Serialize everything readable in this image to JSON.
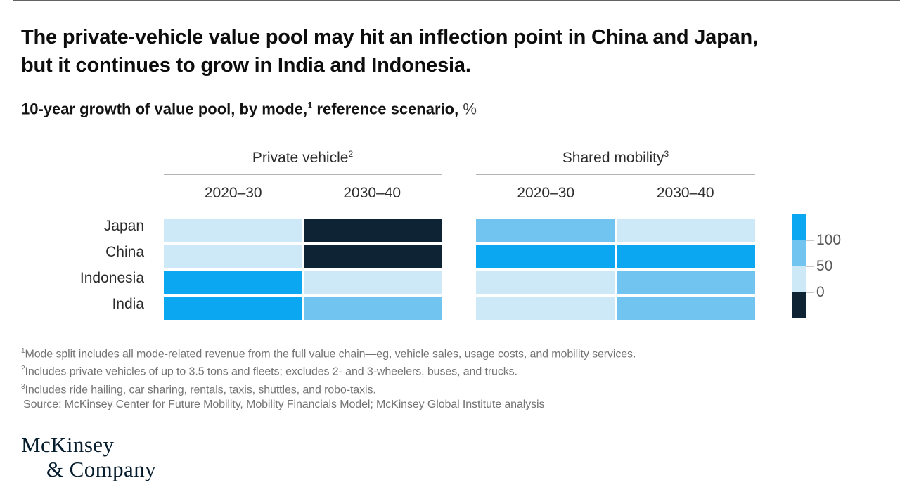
{
  "header": {
    "title_line1": "The private-vehicle value pool may hit an inflection point in China and Japan,",
    "title_line2": "but it continues to grow in India and Indonesia.",
    "subtitle_prefix": "10-year growth of value pool, by mode,",
    "subtitle_sup": "1",
    "subtitle_suffix": " reference scenario, ",
    "subtitle_unit": "%"
  },
  "chart_data": {
    "type": "heatmap",
    "title": "10-year growth of value pool, by mode, reference scenario, %",
    "rows": [
      "Japan",
      "China",
      "Indonesia",
      "India"
    ],
    "groups": [
      {
        "label": "Private vehicle",
        "sup": "2",
        "columns": [
          "2020–30",
          "2030–40"
        ],
        "cells_bucket": [
          [
            "0 to 50",
            "below 0"
          ],
          [
            "0 to 50",
            "below 0"
          ],
          [
            "above 100",
            "0 to 50"
          ],
          [
            "above 100",
            "50 to 100"
          ]
        ]
      },
      {
        "label": "Shared mobility",
        "sup": "3",
        "columns": [
          "2020–30",
          "2030–40"
        ],
        "cells_bucket": [
          [
            "50 to 100",
            "0 to 50"
          ],
          [
            "above 100",
            "above 100"
          ],
          [
            "0 to 50",
            "50 to 100"
          ],
          [
            "0 to 50",
            "50 to 100"
          ]
        ]
      }
    ],
    "legend": {
      "tick_labels": [
        "100",
        "50",
        "0"
      ],
      "bucket_order": [
        "above 100",
        "50 to 100",
        "0 to 50",
        "below 0"
      ]
    },
    "palette": {
      "above 100": "#0ba7f0",
      "50 to 100": "#71c4f0",
      "0 to 50": "#cde9f8",
      "below 0": "#0e2435"
    }
  },
  "footnotes": [
    {
      "sup": "1",
      "text": "Mode split includes all mode-related revenue from the full value chain—eg, vehicle sales, usage costs, and mobility services."
    },
    {
      "sup": "2",
      "text": "Includes private vehicles of up to 3.5 tons and fleets; excludes 2- and 3-wheelers, buses, and trucks."
    },
    {
      "sup": "3",
      "text": "Includes ride hailing, car sharing, rentals, taxis, shuttles, and robo-taxis."
    }
  ],
  "source": "Source: McKinsey Center for Future Mobility, Mobility Financials Model; McKinsey Global Institute analysis",
  "logo": {
    "line1": "McKinsey",
    "line2": "& Company"
  }
}
